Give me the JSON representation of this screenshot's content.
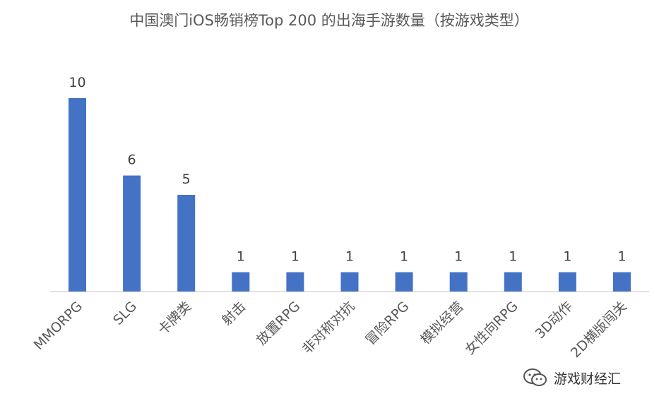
{
  "chart_data": {
    "type": "bar",
    "title": "中国澳门iOS畅销榜Top 200 的出海手游数量（按游戏类型）",
    "categories": [
      "MMORPG",
      "SLG",
      "卡牌类",
      "射击",
      "放置RPG",
      "非对称对抗",
      "冒险RPG",
      "模拟经营",
      "女性向RPG",
      "3D动作",
      "2D横版闯关"
    ],
    "values": [
      10,
      6,
      5,
      1,
      1,
      1,
      1,
      1,
      1,
      1,
      1
    ],
    "data_labels": [
      "10",
      "6",
      "5",
      "1",
      "1",
      "1",
      "1",
      "1",
      "1",
      "1",
      "1"
    ],
    "ylim": [
      0,
      10
    ],
    "bar_color": "#4472C4",
    "axis_color": "#D9D9D9",
    "gridlines": false,
    "legend": "none"
  },
  "watermark": {
    "text": "游戏财经汇",
    "icon": "wechat-icon"
  }
}
